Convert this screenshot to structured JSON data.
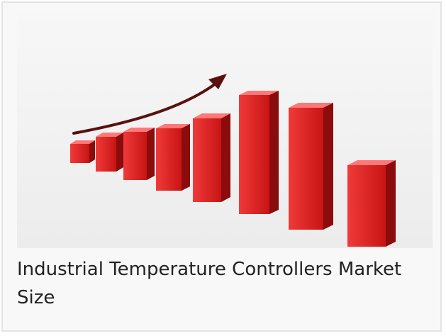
{
  "card": {
    "caption": "Industrial Temperature Controllers Market Size"
  }
}
